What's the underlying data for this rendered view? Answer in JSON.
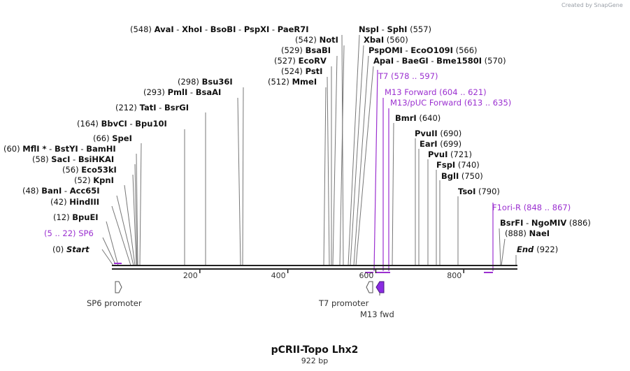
{
  "credit": "Created by SnapGene",
  "map": {
    "title": "pCRII-Topo Lhx2",
    "length_label": "922 bp",
    "length": 922,
    "start_label": "Start",
    "start_pos": "(0)",
    "end_label": "End",
    "end_pos": "(922)",
    "ticks": [
      {
        "value": 200,
        "label": "200"
      },
      {
        "value": 400,
        "label": "400"
      },
      {
        "value": 600,
        "label": "600"
      },
      {
        "value": 800,
        "label": "800"
      }
    ]
  },
  "sites": [
    {
      "pos": "(548)",
      "names": [
        "AvaI",
        "XhoI",
        "BsoBI",
        "PspXI",
        "PaeR7I"
      ],
      "bp": 548
    },
    {
      "pos": "(557)",
      "names": [
        "NspI",
        "SphI"
      ],
      "bp": 557
    },
    {
      "pos": "(542)",
      "names": [
        "NotI"
      ],
      "bp": 542
    },
    {
      "pos": "(560)",
      "names": [
        "XbaI"
      ],
      "bp": 560
    },
    {
      "pos": "(529)",
      "names": [
        "BsaBI"
      ],
      "bp": 529
    },
    {
      "pos": "(566)",
      "names": [
        "PspOMI",
        "EcoO109I"
      ],
      "bp": 566
    },
    {
      "pos": "(527)",
      "names": [
        "EcoRV"
      ],
      "bp": 527
    },
    {
      "pos": "(570)",
      "names": [
        "ApaI",
        "BaeGI",
        "Bme1580I"
      ],
      "bp": 570
    },
    {
      "pos": "(524)",
      "names": [
        "PstI"
      ],
      "bp": 524
    },
    {
      "pos": "(512)",
      "names": [
        "MmeI"
      ],
      "bp": 512
    },
    {
      "pos": "(298)",
      "names": [
        "Bsu36I"
      ],
      "bp": 298
    },
    {
      "pos": "(293)",
      "names": [
        "PmlI",
        "BsaAI"
      ],
      "bp": 293
    },
    {
      "pos": "(212)",
      "names": [
        "TatI",
        "BsrGI"
      ],
      "bp": 212
    },
    {
      "pos": "(164)",
      "names": [
        "BbvCI",
        "Bpu10I"
      ],
      "bp": 164
    },
    {
      "pos": "(66)",
      "names": [
        "SpeI"
      ],
      "bp": 66
    },
    {
      "pos": "(60)",
      "names": [
        "MflI *",
        "BstYI",
        "BamHI"
      ],
      "bp": 60
    },
    {
      "pos": "(58)",
      "names": [
        "SacI",
        "BsiHKAI"
      ],
      "bp": 58
    },
    {
      "pos": "(56)",
      "names": [
        "Eco53kI"
      ],
      "bp": 56
    },
    {
      "pos": "(52)",
      "names": [
        "KpnI"
      ],
      "bp": 52
    },
    {
      "pos": "(48)",
      "names": [
        "BanI",
        "Acc65I"
      ],
      "bp": 48
    },
    {
      "pos": "(42)",
      "names": [
        "HindIII"
      ],
      "bp": 42
    },
    {
      "pos": "(12)",
      "names": [
        "BpuEI"
      ],
      "bp": 12
    },
    {
      "pos": "(640)",
      "names": [
        "BmrI"
      ],
      "bp": 640
    },
    {
      "pos": "(690)",
      "names": [
        "PvuII"
      ],
      "bp": 690
    },
    {
      "pos": "(699)",
      "names": [
        "EarI"
      ],
      "bp": 699
    },
    {
      "pos": "(721)",
      "names": [
        "PvuI"
      ],
      "bp": 721
    },
    {
      "pos": "(740)",
      "names": [
        "FspI"
      ],
      "bp": 740
    },
    {
      "pos": "(750)",
      "names": [
        "BglI"
      ],
      "bp": 750
    },
    {
      "pos": "(790)",
      "names": [
        "TsoI"
      ],
      "bp": 790
    },
    {
      "pos": "(886)",
      "names": [
        "BsrFI",
        "NgoMIV"
      ],
      "bp": 886
    },
    {
      "pos": "(888)",
      "names": [
        "NaeI"
      ],
      "bp": 888
    }
  ],
  "primers": [
    {
      "name": "SP6",
      "range": "(5 .. 22)"
    },
    {
      "name": "T7",
      "range": "(578 .. 597)"
    },
    {
      "name": "M13 Forward",
      "range": "(604 .. 621)"
    },
    {
      "name": "M13/pUC Forward",
      "range": "(613 .. 635)"
    },
    {
      "name": "F1ori-R",
      "range": "(848 .. 867)"
    }
  ],
  "features": [
    {
      "name": "SP6 promoter"
    },
    {
      "name": "T7 promoter"
    },
    {
      "name": "M13 fwd"
    }
  ],
  "colors": {
    "primer": "#9b30d0",
    "backbone": "#222222",
    "line": "#777777",
    "feature_fill": "#8a2be2"
  }
}
